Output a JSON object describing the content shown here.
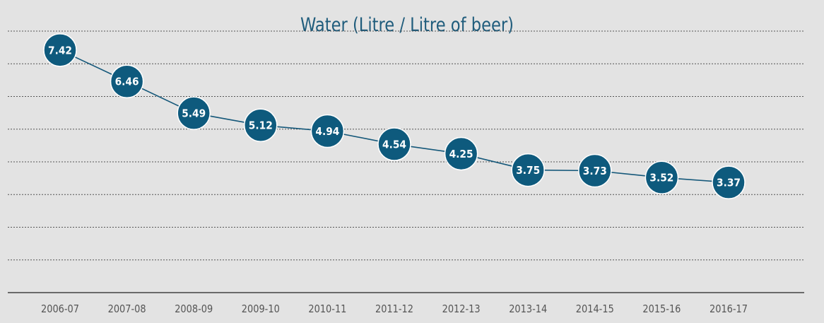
{
  "chart_data": {
    "type": "line",
    "title": "Water (Litre / Litre of beer)",
    "xlabel": "",
    "ylabel": "",
    "categories": [
      "2006-07",
      "2007-08",
      "2008-09",
      "2009-10",
      "2010-11",
      "2011-12",
      "2012-13",
      "2013-14",
      "2014-15",
      "2015-16",
      "2016-17"
    ],
    "series": [
      {
        "values": [
          7.42,
          6.46,
          5.49,
          5.12,
          4.94,
          4.54,
          4.25,
          3.75,
          3.73,
          3.52,
          3.37
        ]
      }
    ],
    "data_labels": [
      "7.42",
      "6.46",
      "5.49",
      "5.12",
      "4.94",
      "4.54",
      "4.25",
      "3.75",
      "3.73",
      "3.52",
      "3.37"
    ],
    "ylim": [
      0,
      8
    ],
    "gridlines": true,
    "legend": "none",
    "colors": {
      "background": "#e3e3e3",
      "title": "#1f5c7c",
      "series": "#15587a",
      "marker": "#0e5a7d",
      "marker_text": "#ffffff",
      "tick_text": "#555555"
    }
  }
}
